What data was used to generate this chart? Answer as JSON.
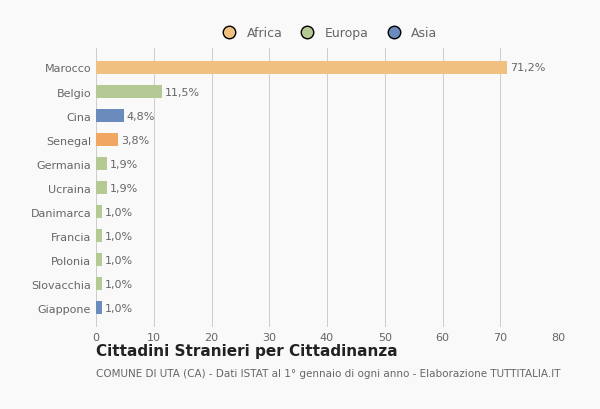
{
  "categories": [
    "Marocco",
    "Belgio",
    "Cina",
    "Senegal",
    "Germania",
    "Ucraina",
    "Danimarca",
    "Francia",
    "Polonia",
    "Slovacchia",
    "Giappone"
  ],
  "values": [
    71.2,
    11.5,
    4.8,
    3.8,
    1.9,
    1.9,
    1.0,
    1.0,
    1.0,
    1.0,
    1.0
  ],
  "labels": [
    "71,2%",
    "11,5%",
    "4,8%",
    "3,8%",
    "1,9%",
    "1,9%",
    "1,0%",
    "1,0%",
    "1,0%",
    "1,0%",
    "1,0%"
  ],
  "colors": [
    "#F0C080",
    "#B5C994",
    "#6B8BBD",
    "#F0A860",
    "#B5C994",
    "#B5C994",
    "#B5C994",
    "#B5C994",
    "#B5C994",
    "#B5C994",
    "#6B8BBD"
  ],
  "legend_labels": [
    "Africa",
    "Europa",
    "Asia"
  ],
  "legend_colors": [
    "#F0C080",
    "#B5C994",
    "#6B8BBD"
  ],
  "title": "Cittadini Stranieri per Cittadinanza",
  "subtitle": "COMUNE DI UTA (CA) - Dati ISTAT al 1° gennaio di ogni anno - Elaborazione TUTTITALIA.IT",
  "xlim": [
    0,
    80
  ],
  "xticks": [
    0,
    10,
    20,
    30,
    40,
    50,
    60,
    70,
    80
  ],
  "background_color": "#f9f9f9",
  "bar_height": 0.55,
  "title_fontsize": 11,
  "subtitle_fontsize": 7.5,
  "label_fontsize": 8,
  "tick_fontsize": 8,
  "legend_fontsize": 9,
  "text_color": "#666666"
}
